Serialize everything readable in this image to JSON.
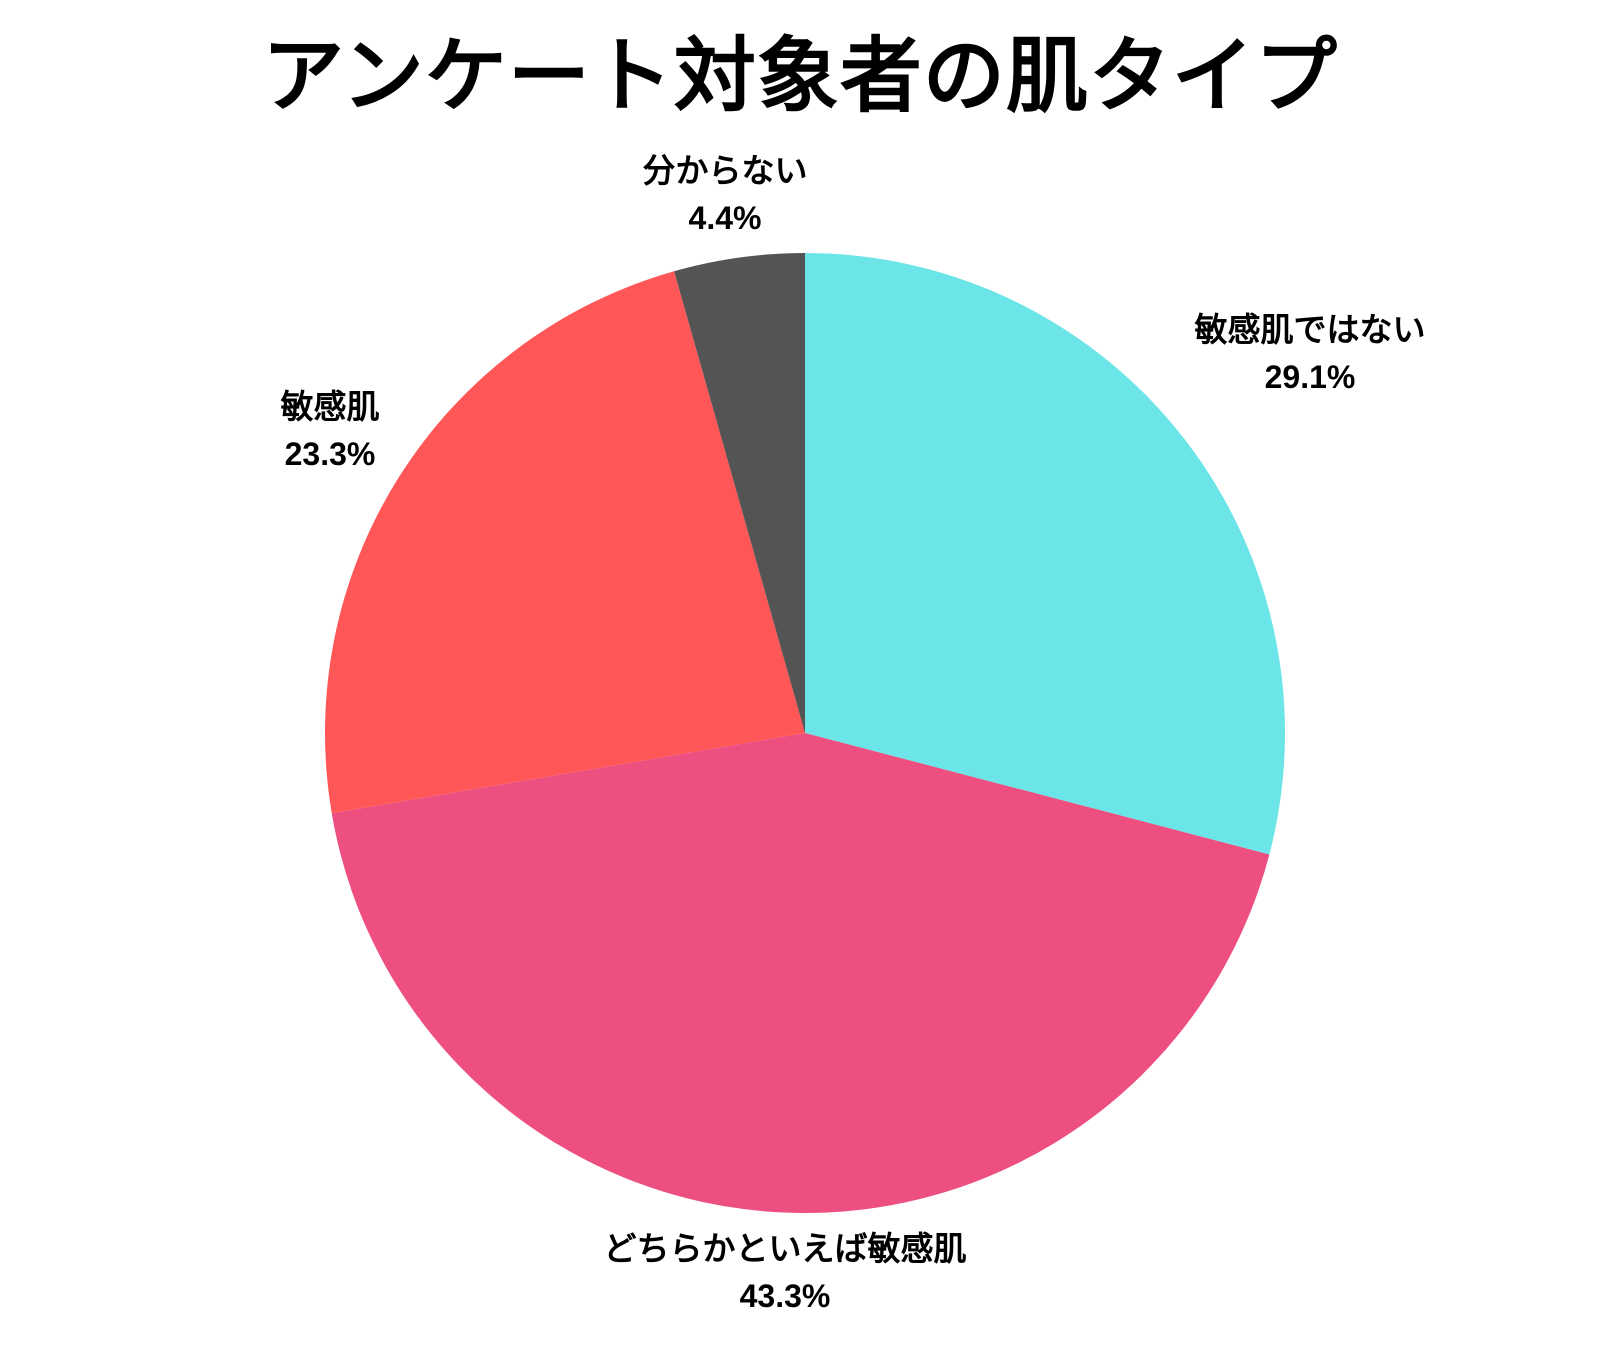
{
  "chart_data": {
    "type": "pie",
    "title": "アンケート対象者の肌タイプ",
    "start": "12 o'clock",
    "direction": "clockwise",
    "slices": [
      {
        "label": "敏感肌ではない",
        "value": 29.1,
        "value_label": "29.1%",
        "color": "#6ce5e8"
      },
      {
        "label": "どちらかといえば敏感肌",
        "value": 43.3,
        "value_label": "43.3%",
        "color": "#ec4f80"
      },
      {
        "label": "敏感肌",
        "value": 23.3,
        "value_label": "23.3%",
        "color": "#ff5757"
      },
      {
        "label": "分からない",
        "value": 4.4,
        "value_label": "4.4%",
        "color": "#545454"
      }
    ]
  }
}
